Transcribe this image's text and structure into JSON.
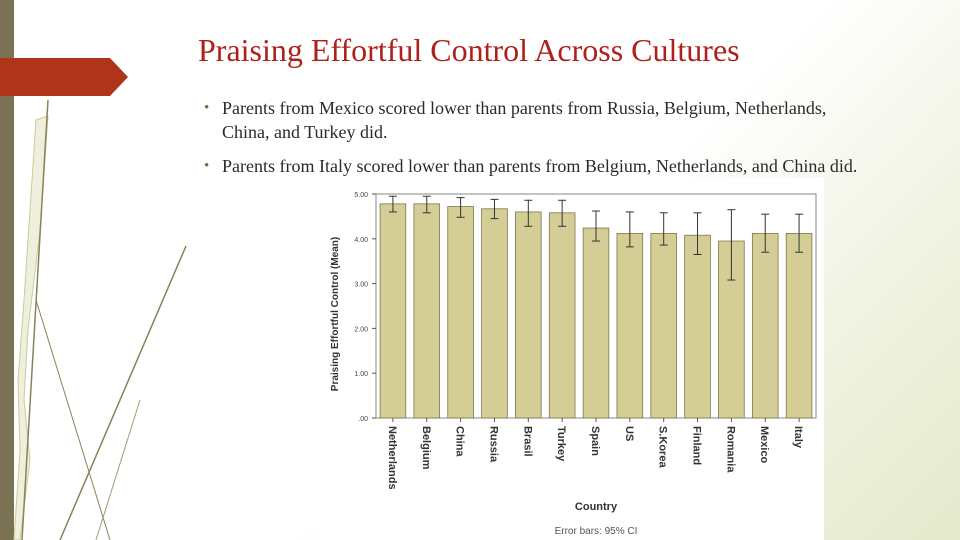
{
  "slide": {
    "title": "Praising Effortful Control Across Cultures",
    "bullets": [
      "Parents from Mexico scored lower than parents from Russia, Belgium, Netherlands, China, and Turkey did.",
      "Parents from Italy scored lower than parents from Belgium, Netherlands, and China did."
    ]
  },
  "colors": {
    "title": "#b0201a",
    "accent_tab": "#b0341a",
    "bar_fill": "#d4cd96",
    "bar_stroke": "#7d7748",
    "strip": "#7a7253"
  },
  "chart_data": {
    "type": "bar",
    "title": "",
    "xlabel": "Country",
    "ylabel": "Praising Effortful Control (Mean)",
    "ylim": [
      0,
      5
    ],
    "yticks": [
      ".00",
      "1.00",
      "2.00",
      "3.00",
      "4.00",
      "5.00"
    ],
    "categories": [
      "Netherlands",
      "Belgium",
      "China",
      "Russia",
      "Brasil",
      "Turkey",
      "Spain",
      "US",
      "S.Korea",
      "Finland",
      "Romania",
      "Mexico",
      "Italy"
    ],
    "values": [
      4.78,
      4.78,
      4.72,
      4.67,
      4.6,
      4.58,
      4.24,
      4.12,
      4.12,
      4.08,
      3.95,
      4.12,
      4.12
    ],
    "ci_low": [
      4.6,
      4.58,
      4.48,
      4.45,
      4.28,
      4.28,
      3.95,
      3.82,
      3.86,
      3.65,
      3.08,
      3.7,
      3.7
    ],
    "ci_high": [
      4.95,
      4.95,
      4.92,
      4.88,
      4.86,
      4.86,
      4.62,
      4.6,
      4.58,
      4.58,
      4.65,
      4.55,
      4.55
    ],
    "footnote": "Error bars: 95% CI"
  }
}
